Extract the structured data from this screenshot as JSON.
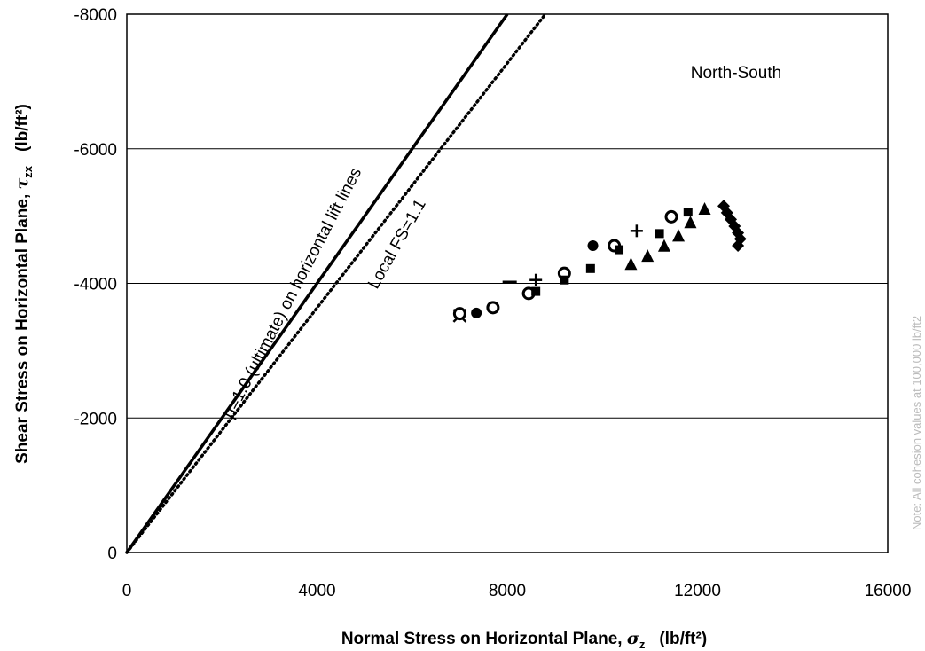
{
  "chart_data": {
    "type": "scatter",
    "title": "",
    "xlabel": {
      "main": "Normal Stress on Horizontal Plane, ",
      "symbol": "σ",
      "sub": "z",
      "unit": "(lb/ft²)"
    },
    "ylabel": {
      "main": "Shear Stress on Horizontal Plane, ",
      "symbol": "τ",
      "sub": "zx",
      "unit": "(lb/ft²)"
    },
    "xlim": [
      0,
      16000
    ],
    "ylim": [
      0,
      -8000
    ],
    "xticks": [
      0,
      4000,
      8000,
      12000,
      16000
    ],
    "yticks": [
      0,
      -2000,
      -4000,
      -6000,
      -8000
    ],
    "grid": {
      "horizontal": true,
      "vertical": false
    },
    "annotations": {
      "region": "North-South",
      "solid_line": "μ=1.0 (ultimate) on horizontal lift lines",
      "dotted_line": "Local FS=1.1",
      "side_note": "Note: All  cohesion values at  100,000  lb/ft2"
    },
    "lines": [
      {
        "name": "μ=1.0 (ultimate) on horizontal lift lines",
        "style": "solid",
        "x": [
          0,
          8000
        ],
        "y": [
          0,
          -8000
        ]
      },
      {
        "name": "Local FS=1.1",
        "style": "dotted",
        "x": [
          0,
          8800
        ],
        "y": [
          0,
          -8000
        ]
      }
    ],
    "series": [
      {
        "marker": "cross-x",
        "x": [
          7000
        ],
        "y": [
          -3520
        ]
      },
      {
        "marker": "open-circle",
        "x": [
          7000,
          7700,
          8450,
          9200,
          10250,
          11450
        ],
        "y": [
          -3550,
          -3640,
          -3850,
          -4150,
          -4560,
          -4990
        ]
      },
      {
        "marker": "filled-circle",
        "x": [
          7350,
          9800
        ],
        "y": [
          -3560,
          -4560
        ]
      },
      {
        "marker": "dash",
        "x": [
          8050
        ],
        "y": [
          -4020
        ]
      },
      {
        "marker": "plus",
        "x": [
          8600,
          10720
        ],
        "y": [
          -4050,
          -4780
        ]
      },
      {
        "marker": "square",
        "x": [
          8600,
          9200,
          9750,
          10350,
          11200,
          11800
        ],
        "y": [
          -3880,
          -4050,
          -4220,
          -4500,
          -4740,
          -5060
        ]
      },
      {
        "marker": "triangle",
        "x": [
          10600,
          10950,
          11300,
          11600,
          11850,
          12150
        ],
        "y": [
          -4280,
          -4400,
          -4550,
          -4700,
          -4900,
          -5100
        ]
      },
      {
        "marker": "diamond",
        "x": [
          12550,
          12620,
          12700,
          12780,
          12850,
          12900,
          12850
        ],
        "y": [
          -5150,
          -5050,
          -4950,
          -4850,
          -4750,
          -4660,
          -4560
        ]
      }
    ]
  }
}
